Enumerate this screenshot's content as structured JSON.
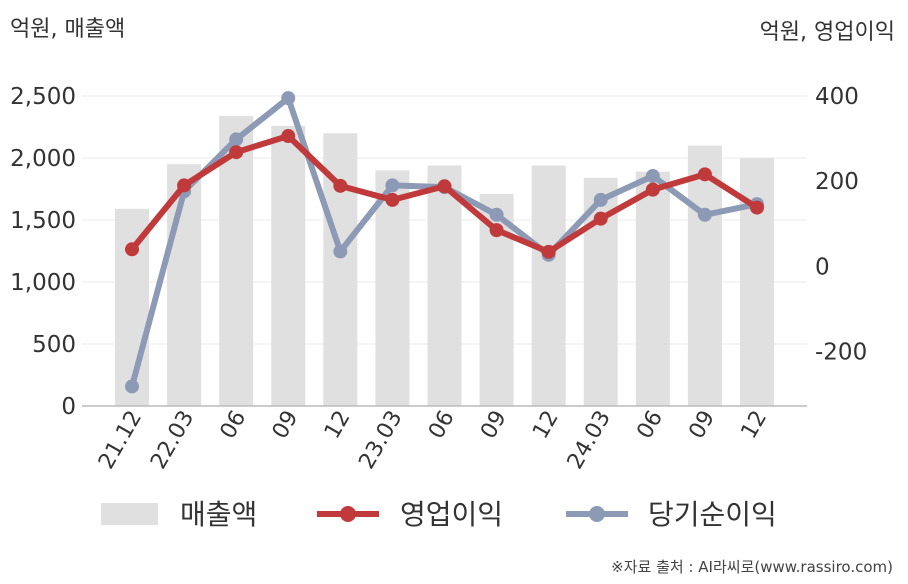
{
  "header": {
    "left_unit": "억원, 매출액",
    "right_unit": "억원, 영업이익"
  },
  "source_note": "※자료 출처 : AI라씨로(www.rassiro.com)",
  "chart_data": {
    "type": "bar",
    "categories": [
      "21.12",
      "22.03",
      "06",
      "09",
      "12",
      "23.03",
      "06",
      "09",
      "12",
      "24.03",
      "06",
      "09",
      "12"
    ],
    "series": [
      {
        "name": "매출액",
        "type": "bar",
        "axis": "left",
        "color": "#e0e0e0",
        "values": [
          1590,
          1950,
          2340,
          2260,
          2200,
          1900,
          1940,
          1710,
          1940,
          1840,
          1890,
          2100,
          2000
        ]
      },
      {
        "name": "영업이익",
        "type": "line",
        "axis": "right",
        "color": "#c0393b",
        "values": [
          40,
          190,
          268,
          306,
          189,
          156,
          188,
          85,
          34,
          112,
          180,
          216,
          138
        ]
      },
      {
        "name": "당기순이익",
        "type": "line",
        "axis": "right",
        "color": "#8d9ab5",
        "values": [
          -282,
          176,
          298,
          395,
          35,
          190,
          186,
          121,
          27,
          156,
          212,
          121,
          146
        ]
      }
    ],
    "left_axis": {
      "ticks": [
        "0",
        "500",
        "1,000",
        "1,500",
        "2,000",
        "2,500"
      ],
      "tick_values": [
        0,
        500,
        1000,
        1500,
        2000,
        2500
      ],
      "ylim": [
        0,
        2500
      ]
    },
    "right_axis": {
      "ticks": [
        "-200",
        "0",
        "200",
        "400"
      ],
      "tick_values": [
        -200,
        0,
        200,
        400
      ],
      "ylim": [
        -328,
        400
      ]
    },
    "grid": true,
    "legend_position": "bottom"
  }
}
